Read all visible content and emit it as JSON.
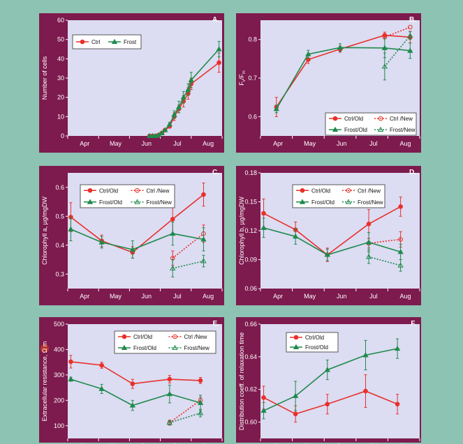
{
  "colors": {
    "background": "#8dc3b2",
    "frame": "#7d1a4e",
    "plot": "#dcdcf2",
    "ctrl": "#e8302a",
    "frost": "#1e8a4c"
  },
  "months": [
    "Apr",
    "May",
    "Jun",
    "Jul",
    "Aug"
  ],
  "chart_data": [
    {
      "panel": "A.",
      "type": "line",
      "ylabel": "Number of cells",
      "ylim": [
        0,
        60
      ],
      "yticks": [
        0,
        10,
        20,
        30,
        40,
        50,
        60
      ],
      "xlim": [
        0,
        5
      ],
      "legend": {
        "position": "top-left",
        "entries": [
          "Ctrl",
          "Frost"
        ]
      },
      "series": [
        {
          "name": "Ctrl",
          "group": "ctrl",
          "style": "solid",
          "points": [
            [
              2.65,
              0
            ],
            [
              2.75,
              0
            ],
            [
              2.85,
              0
            ],
            [
              2.95,
              0.5
            ],
            [
              3.05,
              1.5
            ],
            [
              3.15,
              3
            ],
            [
              3.3,
              5
            ],
            [
              3.45,
              10
            ],
            [
              3.6,
              14
            ],
            [
              3.75,
              18
            ],
            [
              3.9,
              22
            ],
            [
              4.0,
              27
            ],
            [
              4.9,
              38
            ]
          ],
          "err": [
            0,
            0,
            0,
            0,
            0,
            0,
            1,
            2,
            2,
            3,
            3,
            3,
            5
          ]
        },
        {
          "name": "Frost",
          "group": "frost",
          "style": "solid",
          "points": [
            [
              2.65,
              0
            ],
            [
              2.75,
              0
            ],
            [
              2.85,
              0
            ],
            [
              2.95,
              0.5
            ],
            [
              3.05,
              1.5
            ],
            [
              3.15,
              3
            ],
            [
              3.3,
              6
            ],
            [
              3.45,
              11
            ],
            [
              3.6,
              15
            ],
            [
              3.75,
              20
            ],
            [
              3.9,
              24
            ],
            [
              4.0,
              29
            ],
            [
              4.9,
              45
            ]
          ],
          "err": [
            0,
            0,
            0,
            0,
            0,
            0,
            1,
            2,
            3,
            3,
            3,
            4,
            4
          ]
        }
      ]
    },
    {
      "panel": "B.",
      "type": "line",
      "ylabel_main": "F",
      "ylabel_parts": [
        "F",
        "v",
        "/F",
        "m"
      ],
      "ylim": [
        0.55,
        0.85
      ],
      "yticks": [
        0.6,
        0.7,
        0.8
      ],
      "xlim": [
        0,
        5
      ],
      "legend": {
        "position": "bottom-right",
        "entries": [
          "Ctrl/Old",
          "Ctrl /New",
          "Frost/Old",
          "Frost/New"
        ]
      },
      "series": [
        {
          "name": "Ctrl/Old",
          "group": "ctrl",
          "style": "solid",
          "points": [
            [
              0.5,
              0.625
            ],
            [
              1.5,
              0.748
            ],
            [
              2.5,
              0.775
            ],
            [
              3.9,
              0.811
            ],
            [
              4.7,
              0.806
            ]
          ],
          "err": [
            0.025,
            0.01,
            0.008,
            0.008,
            0.015
          ]
        },
        {
          "name": "Ctrl /New",
          "group": "ctrl",
          "style": "dotted",
          "points": [
            [
              3.9,
              0.806
            ],
            [
              4.7,
              0.832
            ]
          ],
          "err": [
            0,
            0
          ]
        },
        {
          "name": "Frost/Old",
          "group": "frost",
          "style": "solid",
          "points": [
            [
              0.5,
              0.62
            ],
            [
              1.5,
              0.762
            ],
            [
              2.5,
              0.779
            ],
            [
              3.9,
              0.778
            ],
            [
              4.7,
              0.771
            ]
          ],
          "err": [
            0.01,
            0.01,
            0.01,
            0.025,
            0.02
          ]
        },
        {
          "name": "Frost/New",
          "group": "frost",
          "style": "dotted",
          "points": [
            [
              3.9,
              0.73
            ],
            [
              4.7,
              0.81
            ]
          ],
          "err": [
            0.035,
            0.01
          ]
        }
      ]
    },
    {
      "panel": "C.",
      "type": "line",
      "ylabel": "Chlorophyll a, µg/mgDW",
      "ylim": [
        0.25,
        0.65
      ],
      "yticks": [
        0.3,
        0.4,
        0.5,
        0.6
      ],
      "xlim": [
        0,
        5
      ],
      "legend": {
        "position": "top-left",
        "entries": [
          "Ctrl/Old",
          "Ctrl /New",
          "Frost/Old",
          "Frost/New"
        ]
      },
      "series": [
        {
          "name": "Ctrl/Old",
          "group": "ctrl",
          "style": "solid",
          "points": [
            [
              0.1,
              0.497
            ],
            [
              1.1,
              0.415
            ],
            [
              2.1,
              0.375
            ],
            [
              3.4,
              0.49
            ],
            [
              4.4,
              0.575
            ]
          ],
          "err": [
            0.05,
            0.02,
            0.02,
            0.05,
            0.04
          ]
        },
        {
          "name": "Ctrl /New",
          "group": "ctrl",
          "style": "dotted",
          "points": [
            [
              3.4,
              0.355
            ],
            [
              4.4,
              0.44
            ]
          ],
          "err": [
            0.025,
            0.03
          ]
        },
        {
          "name": "Frost/Old",
          "group": "frost",
          "style": "solid",
          "points": [
            [
              0.1,
              0.455
            ],
            [
              1.1,
              0.41
            ],
            [
              2.1,
              0.385
            ],
            [
              3.4,
              0.44
            ],
            [
              4.4,
              0.42
            ]
          ],
          "err": [
            0.04,
            0.02,
            0.03,
            0.04,
            0.04
          ]
        },
        {
          "name": "Frost/New",
          "group": "frost",
          "style": "dotted",
          "points": [
            [
              3.4,
              0.32
            ],
            [
              4.4,
              0.345
            ]
          ],
          "err": [
            0.03,
            0.02
          ]
        }
      ]
    },
    {
      "panel": "D.",
      "type": "line",
      "ylabel": "Chlorophyll b, µg/mgDW",
      "ylim": [
        0.06,
        0.18
      ],
      "yticks": [
        0.06,
        0.09,
        0.12,
        0.15,
        0.18
      ],
      "xlim": [
        0,
        5
      ],
      "legend": {
        "position": "top-left",
        "entries": [
          "Ctrl/Old",
          "Ctrl /New",
          "Frost/Old",
          "Frost/New"
        ]
      },
      "series": [
        {
          "name": "Ctrl/Old",
          "group": "ctrl",
          "style": "solid",
          "points": [
            [
              0.1,
              0.138
            ],
            [
              1.1,
              0.121
            ],
            [
              2.1,
              0.095
            ],
            [
              3.4,
              0.127
            ],
            [
              4.4,
              0.145
            ]
          ],
          "err": [
            0.015,
            0.008,
            0.007,
            0.015,
            0.01
          ]
        },
        {
          "name": "Ctrl /New",
          "group": "ctrl",
          "style": "dotted",
          "points": [
            [
              3.4,
              0.107
            ],
            [
              4.4,
              0.111
            ]
          ],
          "err": [
            0.005,
            0.008
          ]
        },
        {
          "name": "Frost/Old",
          "group": "frost",
          "style": "solid",
          "points": [
            [
              0.1,
              0.123
            ],
            [
              1.1,
              0.114
            ],
            [
              2.1,
              0.095
            ],
            [
              3.4,
              0.108
            ],
            [
              4.4,
              0.098
            ]
          ],
          "err": [
            0.01,
            0.008,
            0.006,
            0.01,
            0.008
          ]
        },
        {
          "name": "Frost/New",
          "group": "frost",
          "style": "dotted",
          "points": [
            [
              3.4,
              0.093
            ],
            [
              4.4,
              0.084
            ]
          ],
          "err": [
            0.007,
            0.006
          ]
        }
      ]
    },
    {
      "panel": "E.",
      "type": "line",
      "ylabel": "Extracellular resistance, Ω m",
      "ylim": [
        50,
        500
      ],
      "yticks": [
        100,
        200,
        300,
        400,
        500
      ],
      "xlim": [
        0,
        5
      ],
      "legend": {
        "position": "top-right",
        "entries": [
          "Ctrl/Old",
          "Ctrl /New",
          "Frost/Old",
          "Frost/New"
        ]
      },
      "series": [
        {
          "name": "Ctrl/Old",
          "group": "ctrl",
          "style": "solid",
          "points": [
            [
              0.1,
              352
            ],
            [
              1.1,
              338
            ],
            [
              2.1,
              265
            ],
            [
              3.3,
              283
            ],
            [
              4.3,
              278
            ]
          ],
          "err": [
            25,
            12,
            18,
            15,
            12
          ]
        },
        {
          "name": "Ctrl /New",
          "group": "ctrl",
          "style": "dotted",
          "points": [
            [
              3.3,
              112
            ],
            [
              4.3,
              200
            ]
          ],
          "err": [
            10,
            12
          ]
        },
        {
          "name": "Frost/Old",
          "group": "frost",
          "style": "solid",
          "points": [
            [
              0.1,
              283
            ],
            [
              1.1,
              245
            ],
            [
              2.1,
              180
            ],
            [
              3.3,
              225
            ],
            [
              4.3,
              190
            ]
          ],
          "err": [
            8,
            18,
            20,
            35,
            30
          ]
        },
        {
          "name": "Frost/New",
          "group": "frost",
          "style": "dotted",
          "points": [
            [
              3.3,
              112
            ],
            [
              4.3,
              150
            ]
          ],
          "err": [
            8,
            15
          ]
        }
      ]
    },
    {
      "panel": "F.",
      "type": "line",
      "ylabel": "Distribution coeff. of relaxation time",
      "ylim": [
        0.59,
        0.66
      ],
      "yticks": [
        0.6,
        0.62,
        0.64,
        0.66
      ],
      "xlim": [
        0,
        5
      ],
      "legend": {
        "position": "top-left",
        "entries": [
          "Ctrl/Old",
          "Frost/Old"
        ]
      },
      "series": [
        {
          "name": "Ctrl/Old",
          "group": "ctrl",
          "style": "solid",
          "points": [
            [
              0.1,
              0.615
            ],
            [
              1.1,
              0.605
            ],
            [
              2.1,
              0.611
            ],
            [
              3.3,
              0.619
            ],
            [
              4.3,
              0.611
            ]
          ],
          "err": [
            0.007,
            0.005,
            0.006,
            0.01,
            0.006
          ]
        },
        {
          "name": "Frost/Old",
          "group": "frost",
          "style": "solid",
          "points": [
            [
              0.1,
              0.607
            ],
            [
              1.1,
              0.616
            ],
            [
              2.1,
              0.632
            ],
            [
              3.3,
              0.641
            ],
            [
              4.3,
              0.645
            ]
          ],
          "err": [
            0.005,
            0.009,
            0.006,
            0.009,
            0.006
          ]
        }
      ]
    }
  ]
}
